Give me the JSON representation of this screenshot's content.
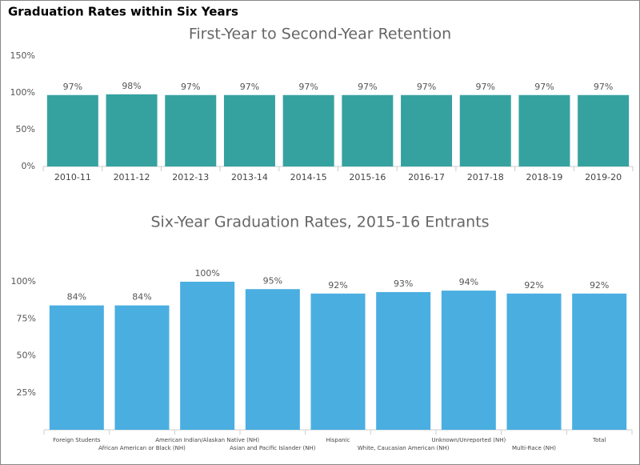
{
  "header": {
    "title": "Graduation Rates within Six Years"
  },
  "chart_data": [
    {
      "type": "bar",
      "title": "First-Year to Second-Year Retention",
      "categories": [
        "2010-11",
        "2011-12",
        "2012-13",
        "2013-14",
        "2014-15",
        "2015-16",
        "2016-17",
        "2017-18",
        "2018-19",
        "2019-20"
      ],
      "values": [
        97,
        98,
        97,
        97,
        97,
        97,
        97,
        97,
        97,
        97
      ],
      "value_labels": [
        "97%",
        "98%",
        "97%",
        "97%",
        "97%",
        "97%",
        "97%",
        "97%",
        "97%",
        "97%"
      ],
      "color": "#36a2a0",
      "ylim": [
        0,
        150
      ],
      "yticks": [
        {
          "value": 0,
          "label": "0%"
        },
        {
          "value": 50,
          "label": "50%"
        },
        {
          "value": 100,
          "label": "100%"
        },
        {
          "value": 150,
          "label": "150%"
        }
      ]
    },
    {
      "type": "bar",
      "title": "Six-Year Graduation Rates, 2015-16 Entrants",
      "categories": [
        "Foreign Students",
        "African American or Black (NH)",
        "American Indian/Alaskan Native (NH)",
        "Asian and Pacific Islander (NH)",
        "Hispanic",
        "White, Caucasian American (NH)",
        "Unknown/Unreported (NH)",
        "Multi-Race (NH)",
        "Total"
      ],
      "values": [
        84,
        84,
        100,
        95,
        92,
        93,
        94,
        92,
        92
      ],
      "value_labels": [
        "84%",
        "84%",
        "100%",
        "95%",
        "92%",
        "93%",
        "94%",
        "92%",
        "92%"
      ],
      "color": "#4aaee0",
      "ylim": [
        0,
        100
      ],
      "yticks": [
        {
          "value": 25,
          "label": "25%"
        },
        {
          "value": 50,
          "label": "50%"
        },
        {
          "value": 75,
          "label": "75%"
        },
        {
          "value": 100,
          "label": "100%"
        }
      ]
    }
  ]
}
